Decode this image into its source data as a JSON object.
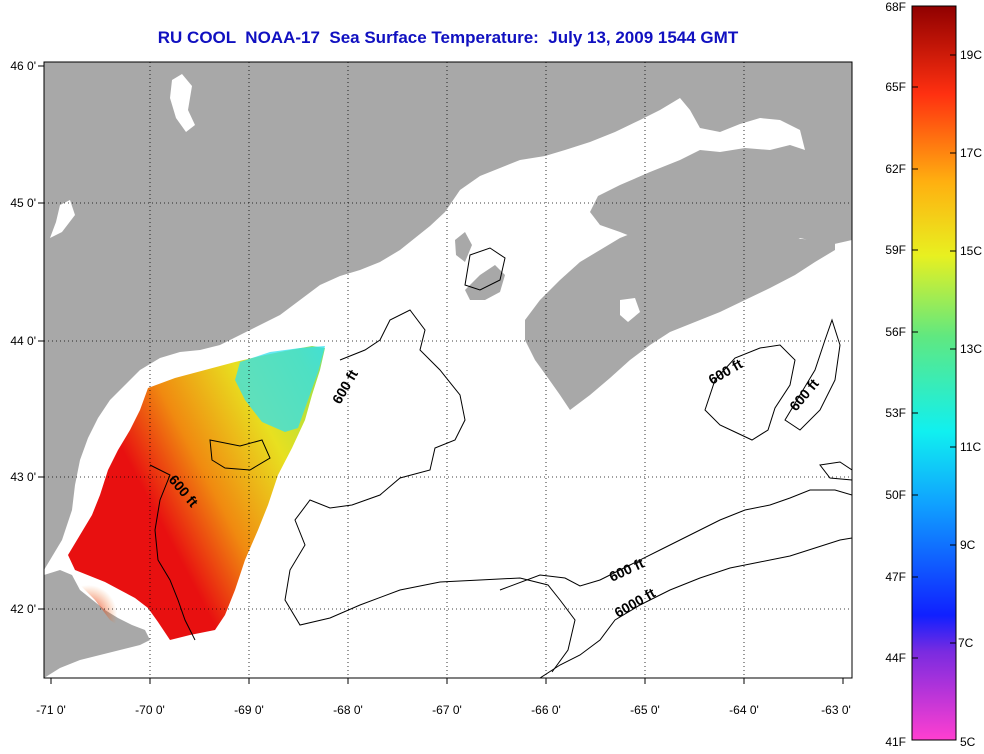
{
  "title": "RU COOL  NOAA-17  Sea Surface Temperature:  July 13, 2009 1544 GMT",
  "lon_labels": [
    "-71 0'",
    "-70 0'",
    "-69 0'",
    "-68 0'",
    "-67 0'",
    "-66 0'",
    "-65 0'",
    "-64 0'",
    "-63 0'"
  ],
  "lat_labels": [
    "46 0'",
    "45 0'",
    "44 0'",
    "43 0'",
    "42 0'"
  ],
  "contour_labels": [
    "600 ft",
    "600 ft",
    "600 ft",
    "600 ft",
    "600 ft",
    "6000 ft"
  ],
  "colorbar": {
    "fahrenheit": [
      "68F",
      "65F",
      "62F",
      "59F",
      "56F",
      "53F",
      "50F",
      "47F",
      "44F",
      "41F"
    ],
    "celsius": [
      "19C",
      "17C",
      "15C",
      "13C",
      "11C",
      "9C",
      "7C",
      "5C"
    ]
  },
  "colors": {
    "land": "#a8a8a8",
    "title": "#1010c0",
    "grid": "#000000"
  }
}
